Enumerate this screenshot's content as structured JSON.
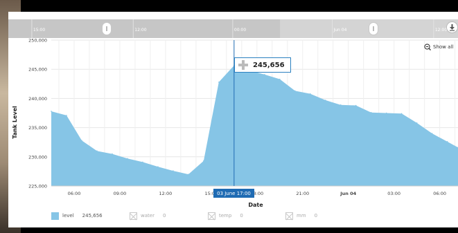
{
  "chart_data": {
    "type": "area",
    "title": "",
    "xlabel": "Date",
    "ylabel": "Tank Level",
    "ylim": [
      225000,
      250000
    ],
    "yticks": [
      "225,000",
      "230,000",
      "235,000",
      "240,000",
      "245,000",
      "250,000"
    ],
    "ytick_values": [
      225000,
      230000,
      235000,
      240000,
      245000,
      250000
    ],
    "xticks": [
      {
        "label": "06:00",
        "t": 6,
        "bold": false
      },
      {
        "label": "09:00",
        "t": 9,
        "bold": false
      },
      {
        "label": "12:00",
        "t": 12,
        "bold": false
      },
      {
        "label": "15:00",
        "t": 15,
        "bold": false
      },
      {
        "label": "18:00",
        "t": 18,
        "bold": false
      },
      {
        "label": "21:00",
        "t": 21,
        "bold": false
      },
      {
        "label": "Jun 04",
        "t": 24,
        "bold": true
      },
      {
        "label": "03:00",
        "t": 27,
        "bold": false
      },
      {
        "label": "06:00",
        "t": 30,
        "bold": false
      }
    ],
    "xlim": [
      4.5,
      31.2
    ],
    "series": [
      {
        "name": "level",
        "color": "#86c5e6",
        "points": [
          [
            4.5,
            237800
          ],
          [
            5.5,
            237100
          ],
          [
            6.5,
            232800
          ],
          [
            7.5,
            231000
          ],
          [
            8.5,
            230500
          ],
          [
            9.5,
            229700
          ],
          [
            10.5,
            229100
          ],
          [
            11.5,
            228300
          ],
          [
            12.5,
            227600
          ],
          [
            13.5,
            227000
          ],
          [
            14.5,
            229300
          ],
          [
            15.5,
            242800
          ],
          [
            16.5,
            245656
          ],
          [
            17.5,
            244800
          ],
          [
            18.5,
            244100
          ],
          [
            19.5,
            243300
          ],
          [
            20.5,
            241300
          ],
          [
            21.5,
            240800
          ],
          [
            22.5,
            239700
          ],
          [
            23.5,
            238900
          ],
          [
            24.5,
            238800
          ],
          [
            25.5,
            237600
          ],
          [
            26.5,
            237500
          ],
          [
            27.5,
            237400
          ],
          [
            28.5,
            235800
          ],
          [
            29.5,
            234000
          ],
          [
            30.5,
            232600
          ],
          [
            31.2,
            231600
          ]
        ]
      }
    ],
    "highlight": {
      "t": 16.5,
      "value_label": "245,656",
      "date_label": "03 June 17:00"
    },
    "navigator": {
      "labels": [
        {
          "label": "15:00",
          "t": 16.3
        },
        {
          "label": "12:00",
          "t": 21.6
        },
        {
          "label": "00:00",
          "t": 26.8
        },
        {
          "label": "Jun 04",
          "t": 32.0
        },
        {
          "label": "12:00",
          "t": 37.3
        }
      ],
      "t_range": [
        15.0,
        38.5
      ],
      "selected_range": [
        15.0,
        29.2
      ]
    },
    "grid": true,
    "legend": {
      "position": "bottom",
      "items": [
        {
          "name": "level",
          "value": "245,656",
          "active": true,
          "color": "#86c5e6"
        },
        {
          "name": "water",
          "value": "0",
          "active": false
        },
        {
          "name": "temp",
          "value": "0",
          "active": false
        },
        {
          "name": "mm",
          "value": "0",
          "active": false
        }
      ]
    }
  },
  "ui": {
    "show_all_label": "Show all"
  },
  "icons": {
    "download": "download-icon",
    "zoom_out": "zoom-out-icon"
  }
}
